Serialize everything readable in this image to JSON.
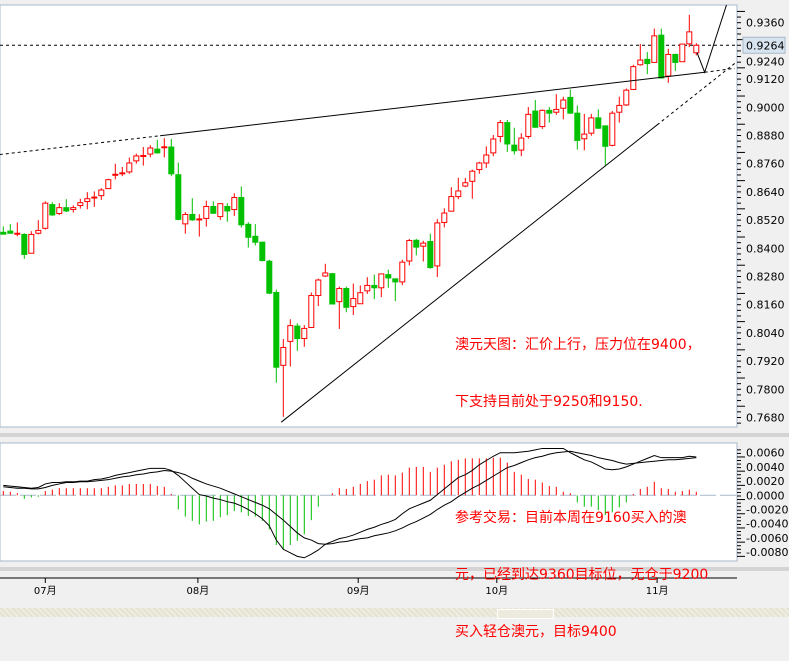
{
  "chart_data": {
    "type": "candlestick",
    "current_price": 0.9264,
    "colors": {
      "up": "#ff0000",
      "down": "#00c000",
      "lines": "#000000",
      "annotation": "#ff0000"
    },
    "price_axis": {
      "ylim": [
        0.766,
        0.944
      ],
      "ticks": [
        "0.9360",
        "0.9240",
        "0.9120",
        "0.9000",
        "0.8880",
        "0.8760",
        "0.8640",
        "0.8520",
        "0.8400",
        "0.8280",
        "0.8160",
        "0.8040",
        "0.7920",
        "0.7800",
        "0.7680"
      ],
      "current_label": "0.9264"
    },
    "months": [
      {
        "label": "07月",
        "at_candle": 6
      },
      {
        "label": "08月",
        "at_candle": 27.8
      },
      {
        "label": "09月",
        "at_candle": 50.7
      },
      {
        "label": "10月",
        "at_candle": 70.5
      },
      {
        "label": "11月",
        "at_candle": 93.4
      }
    ],
    "ohlc_fields": [
      "open",
      "high",
      "low",
      "close"
    ],
    "candles": [
      [
        0.8468,
        0.8493,
        0.8459,
        0.846
      ],
      [
        0.8473,
        0.8503,
        0.8464,
        0.8464
      ],
      [
        0.8463,
        0.851,
        0.8451,
        0.8464
      ],
      [
        0.8459,
        0.8464,
        0.8355,
        0.8374
      ],
      [
        0.8379,
        0.8473,
        0.8379,
        0.8459
      ],
      [
        0.8464,
        0.852,
        0.8459,
        0.8476
      ],
      [
        0.8485,
        0.86,
        0.848,
        0.8592
      ],
      [
        0.8586,
        0.8596,
        0.8538,
        0.8542
      ],
      [
        0.8548,
        0.8592,
        0.8542,
        0.8573
      ],
      [
        0.8573,
        0.8609,
        0.8554,
        0.8559
      ],
      [
        0.8565,
        0.8583,
        0.8552,
        0.8573
      ],
      [
        0.8582,
        0.8611,
        0.8569,
        0.8594
      ],
      [
        0.8599,
        0.8639,
        0.8566,
        0.8611
      ],
      [
        0.8617,
        0.8642,
        0.8576,
        0.8618
      ],
      [
        0.8624,
        0.8656,
        0.8606,
        0.8648
      ],
      [
        0.8654,
        0.8696,
        0.8654,
        0.8692
      ],
      [
        0.8714,
        0.876,
        0.8693,
        0.8715
      ],
      [
        0.8717,
        0.8746,
        0.8707,
        0.8721
      ],
      [
        0.8725,
        0.8786,
        0.8717,
        0.8763
      ],
      [
        0.8772,
        0.8803,
        0.876,
        0.8793
      ],
      [
        0.8794,
        0.8831,
        0.8752,
        0.8795
      ],
      [
        0.8801,
        0.8839,
        0.8787,
        0.8827
      ],
      [
        0.8822,
        0.8862,
        0.8803,
        0.8806
      ],
      [
        0.8831,
        0.8869,
        0.8787,
        0.8832
      ],
      [
        0.8831,
        0.8865,
        0.8707,
        0.8717
      ],
      [
        0.8713,
        0.8765,
        0.8519,
        0.8523
      ],
      [
        0.8504,
        0.8554,
        0.8462,
        0.8544
      ],
      [
        0.8544,
        0.8613,
        0.8517,
        0.8521
      ],
      [
        0.8524,
        0.8545,
        0.845,
        0.8525
      ],
      [
        0.8527,
        0.8603,
        0.8492,
        0.8578
      ],
      [
        0.8578,
        0.86,
        0.8547,
        0.8549
      ],
      [
        0.8535,
        0.859,
        0.8521,
        0.859
      ],
      [
        0.8578,
        0.8592,
        0.8513,
        0.8559
      ],
      [
        0.8565,
        0.8634,
        0.8538,
        0.8616
      ],
      [
        0.8616,
        0.8663,
        0.8488,
        0.85
      ],
      [
        0.8502,
        0.8511,
        0.8403,
        0.8447
      ],
      [
        0.8451,
        0.8503,
        0.8412,
        0.8426
      ],
      [
        0.8426,
        0.8428,
        0.8344,
        0.8348
      ],
      [
        0.8345,
        0.8351,
        0.8205,
        0.8209
      ],
      [
        0.8212,
        0.8224,
        0.7828,
        0.7894
      ],
      [
        0.7902,
        0.8014,
        0.7683,
        0.7978
      ],
      [
        0.8004,
        0.8098,
        0.7897,
        0.8071
      ],
      [
        0.8069,
        0.8081,
        0.7964,
        0.8016
      ],
      [
        0.8016,
        0.8073,
        0.7981,
        0.8059
      ],
      [
        0.8063,
        0.8212,
        0.8063,
        0.8199
      ],
      [
        0.8199,
        0.8271,
        0.8154,
        0.8265
      ],
      [
        0.8282,
        0.8334,
        0.8278,
        0.8295
      ],
      [
        0.8292,
        0.8295,
        0.8161,
        0.8163
      ],
      [
        0.8173,
        0.8237,
        0.8057,
        0.8229
      ],
      [
        0.8229,
        0.8237,
        0.8128,
        0.8149
      ],
      [
        0.8152,
        0.825,
        0.8116,
        0.8186
      ],
      [
        0.8164,
        0.8242,
        0.8164,
        0.8211
      ],
      [
        0.8219,
        0.8277,
        0.8206,
        0.8242
      ],
      [
        0.8242,
        0.8288,
        0.8184,
        0.8232
      ],
      [
        0.8232,
        0.8291,
        0.8192,
        0.8291
      ],
      [
        0.8288,
        0.8309,
        0.8232,
        0.8274
      ],
      [
        0.827,
        0.827,
        0.8175,
        0.8257
      ],
      [
        0.8257,
        0.8351,
        0.8243,
        0.8341
      ],
      [
        0.8346,
        0.844,
        0.8327,
        0.8433
      ],
      [
        0.8434,
        0.844,
        0.837,
        0.8405
      ],
      [
        0.8409,
        0.8432,
        0.8344,
        0.8422
      ],
      [
        0.8429,
        0.8462,
        0.8313,
        0.8318
      ],
      [
        0.8325,
        0.8524,
        0.8278,
        0.8508
      ],
      [
        0.851,
        0.857,
        0.8489,
        0.855
      ],
      [
        0.8558,
        0.866,
        0.8558,
        0.862
      ],
      [
        0.862,
        0.87,
        0.8609,
        0.8644
      ],
      [
        0.8665,
        0.87,
        0.866,
        0.8679
      ],
      [
        0.8685,
        0.8735,
        0.8611,
        0.8728
      ],
      [
        0.8735,
        0.8768,
        0.8717,
        0.8763
      ],
      [
        0.8763,
        0.8834,
        0.8742,
        0.8797
      ],
      [
        0.8806,
        0.8882,
        0.8792,
        0.8865
      ],
      [
        0.8876,
        0.8946,
        0.8851,
        0.8935
      ],
      [
        0.8935,
        0.8946,
        0.881,
        0.8844
      ],
      [
        0.8839,
        0.8913,
        0.8799,
        0.8815
      ],
      [
        0.8818,
        0.889,
        0.8792,
        0.8869
      ],
      [
        0.8876,
        0.9001,
        0.8866,
        0.897
      ],
      [
        0.8984,
        0.9031,
        0.8913,
        0.8915
      ],
      [
        0.8918,
        0.8991,
        0.8908,
        0.8987
      ],
      [
        0.8987,
        0.9001,
        0.8935,
        0.8975
      ],
      [
        0.8979,
        0.9056,
        0.8968,
        0.8991
      ],
      [
        0.8996,
        0.9045,
        0.8949,
        0.9031
      ],
      [
        0.9042,
        0.9076,
        0.8972,
        0.8975
      ],
      [
        0.8975,
        0.9008,
        0.882,
        0.8859
      ],
      [
        0.8866,
        0.8972,
        0.8817,
        0.8886
      ],
      [
        0.889,
        0.8972,
        0.8879,
        0.8955
      ],
      [
        0.8955,
        0.8991,
        0.8908,
        0.8911
      ],
      [
        0.8921,
        0.8921,
        0.8749,
        0.8834
      ],
      [
        0.8838,
        0.8984,
        0.8834,
        0.8975
      ],
      [
        0.8979,
        0.9045,
        0.8935,
        0.9008
      ],
      [
        0.901,
        0.908,
        0.9006,
        0.9073
      ],
      [
        0.9076,
        0.9181,
        0.9073,
        0.9173
      ],
      [
        0.9181,
        0.927,
        0.9177,
        0.9201
      ],
      [
        0.9204,
        0.9235,
        0.9141,
        0.9186
      ],
      [
        0.9191,
        0.9335,
        0.9191,
        0.9304
      ],
      [
        0.9307,
        0.9335,
        0.9122,
        0.9125
      ],
      [
        0.9133,
        0.9249,
        0.9104,
        0.9225
      ],
      [
        0.9225,
        0.9228,
        0.9155,
        0.9191
      ],
      [
        0.9194,
        0.9269,
        0.9194,
        0.9269
      ],
      [
        0.927,
        0.9394,
        0.9256,
        0.9321
      ],
      [
        0.9232,
        0.9273,
        0.9221,
        0.9264
      ]
    ],
    "trendlines": [
      {
        "style": "dashed",
        "points": [
          [
            -0.5,
            0.8799
          ],
          [
            22.4,
            0.8879
          ]
        ]
      },
      {
        "style": "solid",
        "points": [
          [
            22.4,
            0.8879
          ],
          [
            100.2,
            0.9149
          ]
        ]
      },
      {
        "style": "dashed",
        "points": [
          [
            100.2,
            0.9149
          ],
          [
            104.5,
            0.9166
          ]
        ]
      },
      {
        "style": "solid",
        "points": [
          [
            39.7,
            0.766
          ],
          [
            93.4,
            0.8925
          ]
        ]
      },
      {
        "style": "dashed",
        "points": [
          [
            93.4,
            0.8925
          ],
          [
            104.5,
            0.9187
          ]
        ]
      },
      {
        "style": "solid",
        "points": [
          [
            99.1,
            0.9233
          ],
          [
            100.2,
            0.9149
          ],
          [
            103.5,
            0.9453
          ]
        ]
      }
    ],
    "indicator": {
      "ylim": [
        -0.0092,
        0.0076
      ],
      "ticks": [
        "0.0060",
        "0.0040",
        "0.0020",
        "0.0000",
        "-0.0020",
        "-0.0040",
        "-0.0060",
        "-0.0080"
      ],
      "histogram": [
        0.0006,
        0.0005,
        0.0003,
        -0.0005,
        -0.0003,
        -0.0002,
        0.0006,
        0.0008,
        0.001,
        0.001,
        0.001,
        0.001,
        0.001,
        0.001,
        0.001,
        0.0012,
        0.0014,
        0.0014,
        0.0016,
        0.0016,
        0.0016,
        0.0016,
        0.0013,
        0.0012,
        0.0002,
        -0.002,
        -0.003,
        -0.0036,
        -0.0041,
        -0.0037,
        -0.0036,
        -0.0031,
        -0.0028,
        -0.0022,
        -0.0024,
        -0.0029,
        -0.003,
        -0.0036,
        -0.0048,
        -0.007,
        -0.0076,
        -0.007,
        -0.0064,
        -0.0055,
        -0.0035,
        -0.0016,
        0.0,
        0.0003,
        0.001,
        0.0009,
        0.0012,
        0.0016,
        0.002,
        0.0022,
        0.0028,
        0.0029,
        0.0028,
        0.0032,
        0.0039,
        0.004,
        0.004,
        0.0033,
        0.0039,
        0.0043,
        0.0048,
        0.005,
        0.0052,
        0.0052,
        0.0052,
        0.0052,
        0.0053,
        0.0053,
        0.0046,
        0.0033,
        0.0029,
        0.0023,
        0.0022,
        0.0018,
        0.0013,
        0.0012,
        0.0005,
        0.0003,
        -0.001,
        -0.0016,
        -0.0016,
        -0.0021,
        -0.0028,
        -0.0024,
        -0.0017,
        -0.001,
        0.0002,
        0.0009,
        0.0012,
        0.0019,
        0.001,
        0.0009,
        0.0005,
        0.0006,
        0.0008,
        0.0005
      ],
      "line1": [
        0.0014,
        0.0013,
        0.0012,
        0.0011,
        0.001,
        0.0011,
        0.0016,
        0.0018,
        0.0018,
        0.0019,
        0.0019,
        0.002,
        0.002,
        0.0022,
        0.0023,
        0.0025,
        0.0028,
        0.003,
        0.0032,
        0.0034,
        0.0036,
        0.0038,
        0.0038,
        0.0038,
        0.0035,
        0.0028,
        0.0019,
        0.001,
        0.0001,
        -0.0001,
        -0.0004,
        -0.0006,
        -0.0009,
        -0.0011,
        -0.0015,
        -0.002,
        -0.0026,
        -0.0033,
        -0.0043,
        -0.0063,
        -0.0076,
        -0.0081,
        -0.0086,
        -0.0088,
        -0.0083,
        -0.0077,
        -0.0069,
        -0.0065,
        -0.0061,
        -0.0059,
        -0.0056,
        -0.0052,
        -0.0048,
        -0.0045,
        -0.0041,
        -0.0038,
        -0.0034,
        -0.0026,
        -0.0019,
        -0.0015,
        -0.0011,
        -0.0007,
        0.0001,
        0.0009,
        0.0017,
        0.0025,
        0.0029,
        0.0035,
        0.0043,
        0.0049,
        0.0055,
        0.006,
        0.006,
        0.006,
        0.0061,
        0.0062,
        0.0064,
        0.0066,
        0.0066,
        0.0066,
        0.0066,
        0.006,
        0.0055,
        0.005,
        0.0047,
        0.0042,
        0.0037,
        0.0036,
        0.0037,
        0.004,
        0.0044,
        0.0048,
        0.0052,
        0.0056,
        0.0053,
        0.0053,
        0.0053,
        0.0053,
        0.0055,
        0.0054
      ],
      "line2": [
        0.0012,
        0.0011,
        0.001,
        0.001,
        0.0009,
        0.0009,
        0.0011,
        0.0014,
        0.0016,
        0.0018,
        0.0018,
        0.0019,
        0.0019,
        0.002,
        0.0021,
        0.0022,
        0.0024,
        0.0026,
        0.0027,
        0.0029,
        0.003,
        0.0032,
        0.0033,
        0.0035,
        0.0034,
        0.0032,
        0.0029,
        0.0024,
        0.002,
        0.0016,
        0.0013,
        0.001,
        0.0006,
        0.0002,
        -0.0002,
        -0.0006,
        -0.001,
        -0.0014,
        -0.0019,
        -0.0027,
        -0.0035,
        -0.0044,
        -0.0053,
        -0.006,
        -0.0063,
        -0.0068,
        -0.0069,
        -0.0068,
        -0.0066,
        -0.0065,
        -0.0063,
        -0.0061,
        -0.006,
        -0.0057,
        -0.0055,
        -0.0053,
        -0.005,
        -0.0046,
        -0.0041,
        -0.0037,
        -0.0032,
        -0.0027,
        -0.002,
        -0.0014,
        -0.0009,
        -0.0002,
        0.0004,
        0.001,
        0.0015,
        0.0021,
        0.0027,
        0.0033,
        0.0039,
        0.0042,
        0.0046,
        0.005,
        0.0053,
        0.0055,
        0.0058,
        0.006,
        0.0061,
        0.0062,
        0.006,
        0.0058,
        0.0056,
        0.0053,
        0.0051,
        0.0049,
        0.0046,
        0.0044,
        0.0045,
        0.0046,
        0.0047,
        0.0048,
        0.0049,
        0.005,
        0.005,
        0.0051,
        0.0052,
        0.0053
      ]
    }
  },
  "annotation": {
    "lines": [
      "澳元天图：汇价上行，压力位在9400，",
      "下支持目前处于9250和9150.",
      "",
      "参考交易：目前本周在9160买入的澳",
      "元，已经到达9360目标位，无仓于9200",
      "买入轻仓澳元，目标9400"
    ]
  }
}
